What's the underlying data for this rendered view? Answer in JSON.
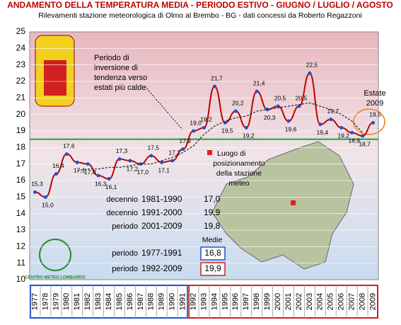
{
  "chart_data": {
    "type": "line",
    "title": "ANDAMENTO DELLA TEMPERATURA MEDIA - PERIODO ESTIVO - GIUGNO / LUGLIO / AGOSTO",
    "subtitle": "Rilevamenti stazione meteorologica di Olmo al Brembo - BG - dati concessi da Roberto Regazzoni",
    "categories": [
      "1977",
      "1978",
      "1979",
      "1980",
      "1981",
      "1982",
      "1983",
      "1984",
      "1985",
      "1986",
      "1987",
      "1988",
      "1989",
      "1990",
      "1991",
      "1992",
      "1993",
      "1994",
      "1995",
      "1996",
      "1997",
      "1998",
      "1999",
      "2000",
      "2001",
      "2002",
      "2003",
      "2004",
      "2005",
      "2006",
      "2007",
      "2008",
      "2009"
    ],
    "series": [
      {
        "name": "Temperatura media",
        "color": "#c00000",
        "values": [
          15.3,
          15.0,
          16.4,
          17.6,
          17.1,
          17.0,
          16.3,
          16.1,
          17.3,
          17.2,
          17.0,
          17.5,
          17.1,
          17.2,
          17.9,
          19.0,
          19.2,
          21.7,
          19.5,
          20.2,
          19.2,
          21.4,
          20.3,
          20.5,
          19.6,
          20.5,
          22.5,
          19.4,
          19.7,
          19.2,
          18.9,
          18.7,
          19.5
        ],
        "value_labels": [
          "15,3",
          "15,0",
          "16,4",
          "17,6",
          "17,1",
          "17,0",
          "16,3",
          "16,1",
          "17,3",
          "17,2",
          "17,0",
          "17,5",
          "17,1",
          "17,2",
          "17,9",
          "19,0",
          "19,2",
          "21,7",
          "19,5",
          "20,2",
          "19,2",
          "21,4",
          "20,3",
          "20,5",
          "19,6",
          "20,5",
          "22,5",
          "19,4",
          "19,7",
          "19,2",
          "18,9",
          "18,7",
          "19,5"
        ]
      },
      {
        "color": "#222222",
        "dashed": true,
        "values": [
          null,
          null,
          null,
          null,
          16.6,
          16.7,
          16.7,
          16.8,
          16.8,
          16.9,
          17.0,
          17.0,
          17.2,
          17.4,
          17.7,
          18.1,
          18.8,
          19.3,
          19.6,
          19.8,
          19.9,
          20.2,
          20.3,
          20.4,
          20.5,
          20.6,
          20.7,
          20.5,
          20.3,
          20.0,
          19.6,
          18.9,
          null
        ]
      }
    ],
    "reference_line": {
      "value": 18.5,
      "color": "#22a040"
    },
    "ylim": [
      10,
      25
    ],
    "yticks": [
      10,
      11,
      12,
      13,
      14,
      15,
      16,
      17,
      18,
      19,
      20,
      21,
      22,
      23,
      24,
      25
    ],
    "grid": true,
    "annotations": {
      "trend": [
        "Periodo di",
        "inversione di",
        "tendenza verso",
        "estati più calde"
      ],
      "summer": [
        "Estate",
        "2009"
      ]
    },
    "map_legend": [
      "Luogo di",
      "posizionamento",
      "della stazione",
      "meteo"
    ],
    "logo_text": "CENTRO METEO LOMBARDO",
    "averages": {
      "rows": [
        [
          "decennio",
          "1981-1990",
          "17,0"
        ],
        [
          "decennio",
          "1991-2000",
          "19,9"
        ],
        [
          "periodo",
          "2001-2009",
          "19,8"
        ]
      ],
      "header": "Medie",
      "periods": [
        [
          "periodo",
          "1977-1991",
          "16,8"
        ],
        [
          "periodo",
          "1992-2009",
          "19,9"
        ]
      ]
    }
  }
}
